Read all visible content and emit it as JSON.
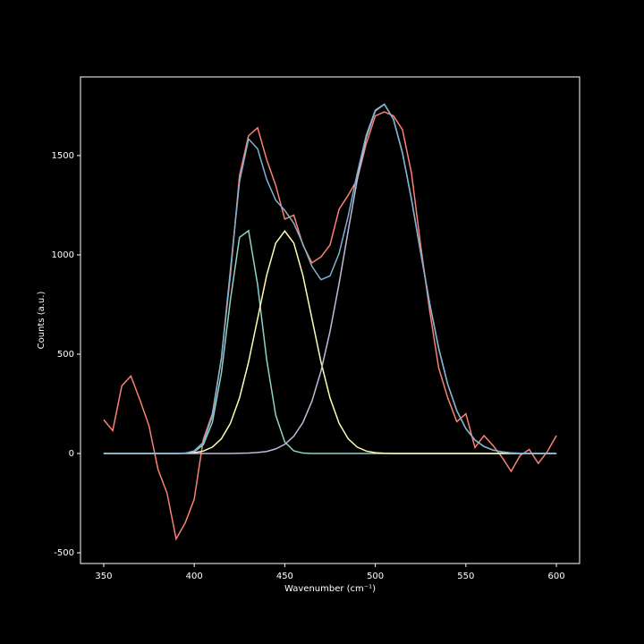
{
  "chart_data": {
    "type": "line",
    "x_label": "Wavenumber (cm⁻¹)",
    "y_label": "Counts (a.u.)",
    "xlim": [
      337.2,
      612.8
    ],
    "ylim": [
      -554,
      1896
    ],
    "xticks": [
      350,
      400,
      450,
      500,
      550,
      600
    ],
    "yticks": [
      -500,
      0,
      500,
      1000,
      1500
    ],
    "x": [
      350,
      355,
      360,
      365,
      370,
      375,
      380,
      385,
      390,
      395,
      400,
      405,
      410,
      415,
      420,
      425,
      430,
      435,
      440,
      445,
      450,
      455,
      460,
      465,
      470,
      475,
      480,
      485,
      490,
      495,
      500,
      505,
      510,
      515,
      520,
      525,
      530,
      535,
      540,
      545,
      550,
      555,
      560,
      565,
      570,
      575,
      580,
      585,
      590,
      595,
      600
    ],
    "series": [
      {
        "color": "#fa8174",
        "values": [
          170,
          115,
          340,
          390,
          270,
          140,
          -80,
          -200,
          -430,
          -350,
          -230,
          70,
          200,
          480,
          900,
          1400,
          1600,
          1640,
          1480,
          1350,
          1180,
          1200,
          1050,
          960,
          990,
          1050,
          1230,
          1300,
          1380,
          1560,
          1700,
          1720,
          1700,
          1630,
          1410,
          1050,
          720,
          430,
          280,
          160,
          200,
          30,
          90,
          40,
          -20,
          -90,
          -10,
          20,
          -50,
          10,
          90
        ]
      },
      {
        "color": "#8dd3c7",
        "values": [
          0,
          0,
          0,
          0,
          0,
          0,
          0,
          0,
          0,
          1,
          9,
          44,
          156,
          405,
          775,
          1088,
          1122,
          850,
          473,
          193,
          58,
          13,
          2,
          0,
          0,
          0,
          0,
          0,
          0,
          0,
          0,
          0,
          0,
          0,
          0,
          0,
          0,
          0,
          0,
          0,
          0,
          0,
          0,
          0,
          0,
          0,
          0,
          0,
          0,
          0,
          0
        ]
      },
      {
        "color": "#feffb3",
        "values": [
          0,
          0,
          0,
          0,
          0,
          0,
          0,
          0,
          0,
          1,
          4,
          12,
          32,
          74,
          152,
          279,
          460,
          679,
          897,
          1059,
          1120,
          1059,
          897,
          679,
          460,
          279,
          152,
          74,
          32,
          12,
          4,
          1,
          0,
          0,
          0,
          0,
          0,
          0,
          0,
          0,
          0,
          0,
          0,
          0,
          0,
          0,
          0,
          0,
          0,
          0,
          0
        ]
      },
      {
        "color": "#bfbbd9",
        "values": [
          0,
          0,
          0,
          0,
          0,
          0,
          0,
          0,
          0,
          0,
          0,
          0,
          0,
          0,
          0,
          1,
          2,
          5,
          10,
          23,
          46,
          87,
          156,
          263,
          415,
          615,
          856,
          1121,
          1378,
          1591,
          1725,
          1758,
          1683,
          1513,
          1278,
          1014,
          756,
          529,
          348,
          215,
          125,
          68,
          35,
          17,
          8,
          3,
          1,
          0,
          0,
          0,
          0
        ]
      },
      {
        "color": "#81b1d2",
        "values": [
          0,
          0,
          0,
          0,
          0,
          0,
          0,
          0,
          0,
          2,
          13,
          56,
          188,
          479,
          927,
          1368,
          1584,
          1534,
          1380,
          1275,
          1224,
          1159,
          1055,
          942,
          875,
          894,
          1008,
          1195,
          1410,
          1603,
          1729,
          1759,
          1683,
          1513,
          1278,
          1014,
          756,
          529,
          348,
          215,
          125,
          68,
          35,
          17,
          8,
          3,
          1,
          0,
          0,
          0,
          0
        ]
      }
    ]
  }
}
